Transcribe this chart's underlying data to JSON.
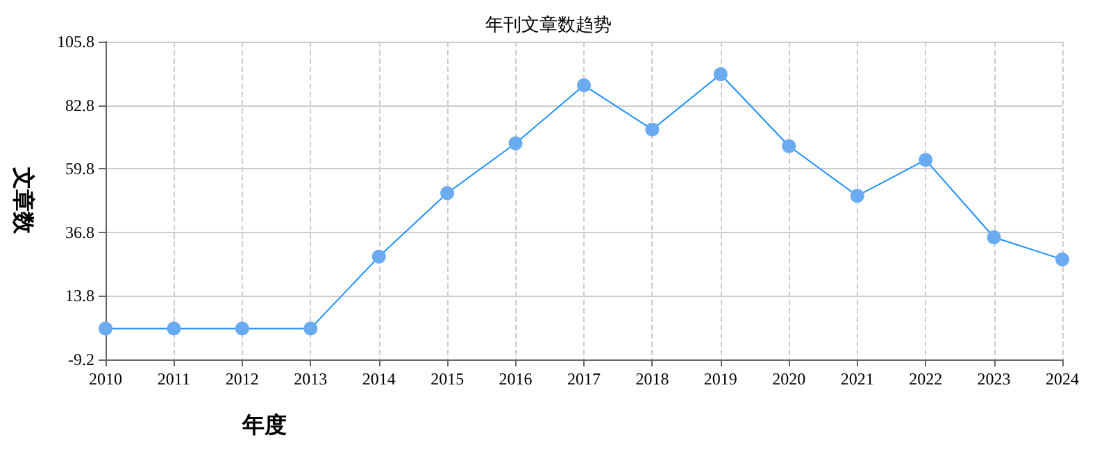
{
  "chart_data": {
    "type": "line",
    "title": "年刊文章数趋势",
    "xlabel": "年度",
    "ylabel": "文章数",
    "categories": [
      "2010",
      "2011",
      "2012",
      "2013",
      "2014",
      "2015",
      "2016",
      "2017",
      "2018",
      "2019",
      "2020",
      "2021",
      "2022",
      "2023",
      "2024"
    ],
    "series": [
      {
        "color": "#1e90ff",
        "values": [
          2,
          2,
          2,
          2,
          28,
          51,
          69,
          90,
          74,
          94,
          68,
          50,
          63,
          35,
          27
        ]
      }
    ],
    "ylim": [
      -9.2,
      105.8
    ],
    "yticks": [
      -9.2,
      13.8,
      36.8,
      59.8,
      82.8,
      105.8
    ],
    "grid": true,
    "marker": "circle",
    "line_style": "solid"
  }
}
